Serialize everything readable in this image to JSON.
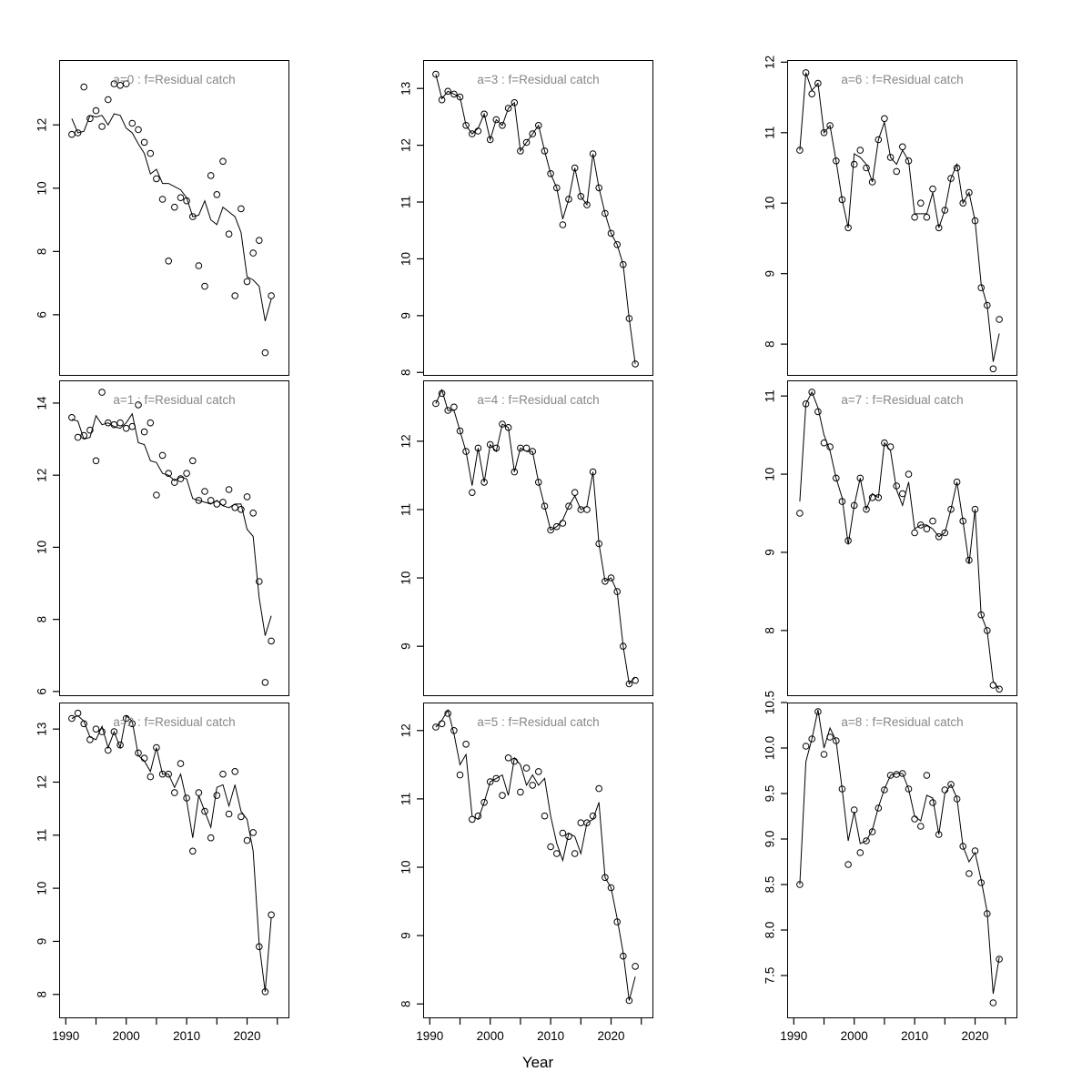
{
  "figure": {
    "xlabel": "Year",
    "title_color": "#878787",
    "axis_color": "#000000",
    "point_color": "#000000",
    "line_color": "#000000",
    "background": "#ffffff"
  },
  "chart_data": {
    "type": "line",
    "subtype": "scatter-with-fitted-line",
    "xlabel": "Year",
    "x": [
      1991,
      1992,
      1993,
      1994,
      1995,
      1996,
      1997,
      1998,
      1999,
      2000,
      2001,
      2002,
      2003,
      2004,
      2005,
      2006,
      2007,
      2008,
      2009,
      2010,
      2011,
      2012,
      2013,
      2014,
      2015,
      2016,
      2017,
      2018,
      2019,
      2020,
      2021,
      2022,
      2023,
      2024
    ],
    "xlim": [
      1988.9,
      2027.0
    ],
    "xticks_labeled": [
      1990,
      2000,
      2010,
      2020
    ],
    "xtick_labels": [
      "1990",
      "2000",
      "2010",
      "2020"
    ],
    "xticks_minor": [
      1995,
      2005,
      2015,
      2025
    ],
    "grid": false,
    "legend": "none",
    "panels": [
      {
        "id": "a0",
        "title": "a=0  :  f=Residual catch",
        "ylim": [
          4.07,
          14.05
        ],
        "yticks": [
          6,
          8,
          10,
          12
        ],
        "ytick_labels": [
          "6",
          "8",
          "10",
          "12"
        ],
        "points": [
          11.7,
          11.75,
          13.2,
          12.2,
          12.45,
          11.95,
          12.8,
          13.3,
          13.25,
          13.3,
          12.05,
          11.85,
          11.45,
          11.1,
          10.3,
          9.65,
          7.7,
          9.4,
          9.7,
          9.6,
          9.1,
          7.55,
          6.9,
          10.4,
          9.8,
          10.85,
          8.55,
          6.6,
          9.35,
          7.05,
          7.95,
          8.35,
          4.8,
          6.6
        ],
        "line": [
          12.2,
          11.75,
          11.8,
          12.3,
          12.25,
          12.3,
          12.0,
          12.35,
          12.3,
          11.9,
          11.75,
          11.4,
          11.1,
          10.45,
          10.6,
          10.15,
          10.15,
          10.05,
          9.95,
          9.7,
          9.1,
          9.15,
          9.6,
          9.0,
          8.85,
          9.4,
          9.25,
          9.1,
          8.6,
          7.2,
          7.1,
          6.9,
          5.8,
          6.5
        ]
      },
      {
        "id": "a1",
        "title": "a=1  :  f=Residual catch",
        "ylim": [
          5.87,
          14.63
        ],
        "yticks": [
          6,
          8,
          10,
          12,
          14
        ],
        "ytick_labels": [
          "6",
          "8",
          "10",
          "12",
          "14"
        ],
        "points": [
          13.6,
          13.05,
          13.1,
          13.25,
          12.4,
          14.3,
          13.45,
          13.4,
          13.45,
          13.3,
          13.35,
          13.95,
          13.2,
          13.45,
          11.45,
          12.55,
          12.05,
          11.8,
          11.9,
          12.05,
          12.4,
          11.3,
          11.55,
          11.3,
          11.2,
          11.25,
          11.6,
          11.1,
          11.05,
          11.4,
          10.95,
          9.05,
          6.25,
          7.4
        ],
        "line": [
          13.55,
          13.5,
          13.0,
          13.05,
          13.65,
          13.4,
          13.45,
          13.35,
          13.3,
          13.45,
          13.7,
          12.9,
          12.85,
          12.4,
          12.35,
          12.05,
          12.0,
          11.85,
          11.95,
          11.9,
          11.35,
          11.3,
          11.25,
          11.2,
          11.3,
          11.15,
          11.1,
          11.2,
          11.2,
          10.5,
          10.3,
          8.6,
          7.55,
          8.1
        ]
      },
      {
        "id": "a2",
        "title": "a=2  :  f=Residual catch",
        "ylim": [
          7.55,
          13.5
        ],
        "yticks": [
          8,
          9,
          10,
          11,
          12,
          13
        ],
        "ytick_labels": [
          "8",
          "9",
          "10",
          "11",
          "12",
          "13"
        ],
        "points": [
          13.2,
          13.3,
          13.1,
          12.8,
          13.0,
          12.95,
          12.6,
          12.95,
          12.7,
          13.2,
          13.1,
          12.55,
          12.45,
          12.1,
          12.65,
          12.15,
          12.15,
          11.8,
          12.35,
          11.7,
          10.7,
          11.8,
          11.45,
          10.95,
          11.75,
          12.15,
          11.4,
          12.2,
          11.35,
          10.9,
          11.05,
          8.9,
          8.05,
          9.5
        ],
        "line": [
          13.2,
          13.25,
          13.15,
          12.85,
          12.8,
          13.05,
          12.65,
          12.95,
          12.65,
          13.25,
          13.15,
          12.5,
          12.4,
          12.2,
          12.65,
          12.15,
          12.15,
          11.9,
          12.15,
          11.65,
          10.95,
          11.75,
          11.45,
          11.15,
          11.9,
          11.95,
          11.55,
          11.95,
          11.45,
          11.3,
          10.7,
          8.95,
          8.05,
          9.45
        ]
      },
      {
        "id": "a3",
        "title": "a=3  :  f=Residual catch",
        "ylim": [
          7.94,
          13.5
        ],
        "yticks": [
          8,
          9,
          10,
          11,
          12,
          13
        ],
        "ytick_labels": [
          "8",
          "9",
          "10",
          "11",
          "12",
          "13"
        ],
        "points": [
          13.25,
          12.8,
          12.95,
          12.9,
          12.85,
          12.35,
          12.2,
          12.25,
          12.55,
          12.1,
          12.45,
          12.35,
          12.65,
          12.75,
          11.9,
          12.05,
          12.2,
          12.35,
          11.9,
          11.5,
          11.25,
          10.6,
          11.05,
          11.6,
          11.1,
          10.95,
          11.85,
          11.25,
          10.8,
          10.45,
          10.25,
          9.9,
          8.95,
          8.15
        ],
        "line": [
          13.25,
          12.82,
          12.95,
          12.9,
          12.85,
          12.35,
          12.2,
          12.3,
          12.55,
          12.1,
          12.45,
          12.35,
          12.65,
          12.75,
          11.9,
          12.05,
          12.2,
          12.35,
          11.9,
          11.5,
          11.25,
          10.7,
          11.05,
          11.6,
          11.1,
          10.95,
          11.85,
          11.25,
          10.8,
          10.45,
          10.25,
          9.9,
          8.95,
          8.15
        ]
      },
      {
        "id": "a4",
        "title": "a=4  :  f=Residual catch",
        "ylim": [
          8.27,
          12.89
        ],
        "yticks": [
          9,
          10,
          11,
          12
        ],
        "ytick_labels": [
          "9",
          "10",
          "11",
          "12"
        ],
        "points": [
          12.55,
          12.7,
          12.45,
          12.5,
          12.15,
          11.85,
          11.25,
          11.9,
          11.4,
          11.95,
          11.9,
          12.25,
          12.2,
          11.55,
          11.9,
          11.9,
          11.85,
          11.4,
          11.05,
          10.7,
          10.75,
          10.8,
          11.05,
          11.25,
          11.0,
          11.0,
          11.55,
          10.5,
          9.95,
          10.0,
          9.8,
          9.0,
          8.45,
          8.5
        ],
        "line": [
          12.55,
          12.75,
          12.45,
          12.45,
          12.15,
          11.85,
          11.35,
          11.9,
          11.4,
          11.95,
          11.85,
          12.25,
          12.2,
          11.55,
          11.9,
          11.85,
          11.85,
          11.4,
          11.05,
          10.7,
          10.75,
          10.85,
          11.05,
          11.2,
          11.0,
          11.05,
          11.55,
          10.5,
          9.95,
          10.0,
          9.8,
          9.0,
          8.45,
          8.55
        ]
      },
      {
        "id": "a5",
        "title": "a=5  :  f=Residual catch",
        "ylim": [
          7.79,
          12.41
        ],
        "yticks": [
          8,
          9,
          10,
          11,
          12
        ],
        "ytick_labels": [
          "8",
          "9",
          "10",
          "11",
          "12"
        ],
        "points": [
          12.05,
          12.1,
          12.25,
          12.0,
          11.35,
          11.8,
          10.7,
          10.75,
          10.95,
          11.25,
          11.3,
          11.05,
          11.6,
          11.55,
          11.1,
          11.45,
          11.2,
          11.4,
          10.75,
          10.3,
          10.2,
          10.5,
          10.45,
          10.2,
          10.65,
          10.65,
          10.75,
          11.15,
          9.85,
          9.7,
          9.2,
          8.7,
          8.05,
          8.55
        ],
        "line": [
          12.05,
          12.15,
          12.3,
          11.95,
          11.5,
          11.65,
          10.75,
          10.7,
          10.95,
          11.25,
          11.3,
          11.35,
          11.05,
          11.6,
          11.5,
          11.2,
          11.35,
          11.2,
          11.3,
          10.75,
          10.35,
          10.1,
          10.5,
          10.45,
          10.2,
          10.65,
          10.7,
          10.95,
          9.85,
          9.7,
          9.25,
          8.75,
          8.05,
          8.4
        ]
      },
      {
        "id": "a6",
        "title": "a=6  :  f=Residual catch",
        "ylim": [
          7.55,
          12.03
        ],
        "yticks": [
          8,
          9,
          10,
          11,
          12
        ],
        "ytick_labels": [
          "8",
          "9",
          "10",
          "11",
          "12"
        ],
        "points": [
          10.75,
          11.85,
          11.55,
          11.7,
          11.0,
          11.1,
          10.6,
          10.05,
          9.65,
          10.55,
          10.75,
          10.5,
          10.3,
          10.9,
          11.2,
          10.65,
          10.45,
          10.8,
          10.6,
          9.8,
          10.0,
          9.8,
          10.2,
          9.65,
          9.9,
          10.35,
          10.5,
          10.0,
          10.15,
          9.75,
          8.8,
          8.55,
          7.65,
          8.35
        ],
        "line": [
          10.75,
          11.85,
          11.6,
          11.7,
          11.0,
          11.1,
          10.6,
          10.05,
          9.65,
          10.7,
          10.65,
          10.55,
          10.3,
          10.9,
          11.15,
          10.65,
          10.55,
          10.75,
          10.6,
          9.85,
          9.85,
          9.85,
          10.15,
          9.65,
          9.9,
          10.35,
          10.55,
          10.0,
          10.15,
          9.75,
          8.85,
          8.55,
          7.75,
          8.15
        ]
      },
      {
        "id": "a7",
        "title": "a=7  :  f=Residual catch",
        "ylim": [
          7.16,
          11.2
        ],
        "yticks": [
          8,
          9,
          10,
          11
        ],
        "ytick_labels": [
          "8",
          "9",
          "10",
          "11"
        ],
        "points": [
          9.5,
          10.9,
          11.05,
          10.8,
          10.4,
          10.35,
          9.95,
          9.65,
          9.15,
          9.6,
          9.95,
          9.55,
          9.7,
          9.7,
          10.4,
          10.35,
          9.85,
          9.75,
          10.0,
          9.25,
          9.35,
          9.3,
          9.4,
          9.2,
          9.25,
          9.55,
          9.9,
          9.4,
          8.9,
          9.55,
          8.2,
          8.0,
          7.3,
          7.25
        ],
        "line": [
          9.65,
          10.9,
          11.05,
          10.85,
          10.5,
          10.3,
          9.95,
          9.7,
          9.1,
          9.6,
          9.95,
          9.55,
          9.75,
          9.7,
          10.4,
          10.3,
          9.8,
          9.6,
          9.9,
          9.3,
          9.35,
          9.35,
          9.3,
          9.2,
          9.25,
          9.55,
          9.9,
          9.4,
          8.85,
          9.55,
          8.2,
          8.0,
          7.35,
          7.25
        ]
      },
      {
        "id": "a8",
        "title": "a=8  :  f=Residual catch",
        "ylim": [
          7.03,
          10.5
        ],
        "yticks": [
          7.5,
          8.0,
          8.5,
          9.0,
          9.5,
          10.0,
          10.5
        ],
        "ytick_labels": [
          "7.5",
          "8.0",
          "8.5",
          "9.0",
          "9.5",
          "10.0",
          "10.5"
        ],
        "points": [
          8.5,
          10.02,
          10.1,
          10.4,
          9.93,
          10.12,
          10.08,
          9.55,
          8.72,
          9.32,
          8.85,
          8.98,
          9.08,
          9.34,
          9.54,
          9.7,
          9.71,
          9.72,
          9.55,
          9.22,
          9.14,
          9.7,
          9.4,
          9.05,
          9.54,
          9.6,
          9.44,
          8.92,
          8.62,
          8.87,
          8.52,
          8.18,
          7.2,
          7.68
        ],
        "line": [
          8.5,
          9.85,
          10.1,
          10.42,
          10.0,
          10.22,
          10.08,
          9.55,
          8.98,
          9.3,
          8.95,
          8.98,
          9.1,
          9.35,
          9.55,
          9.7,
          9.72,
          9.72,
          9.55,
          9.25,
          9.2,
          9.48,
          9.45,
          9.05,
          9.5,
          9.6,
          9.45,
          8.92,
          8.75,
          8.85,
          8.55,
          8.2,
          7.3,
          7.7
        ]
      }
    ]
  }
}
